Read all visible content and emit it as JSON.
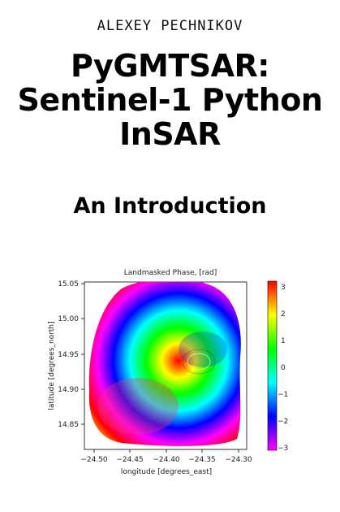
{
  "author": "ALEXEY PECHNIKOV",
  "title_lines": [
    "PyGMTSAR:",
    "Sentinel-1 Python",
    "InSAR"
  ],
  "subtitle": "An Introduction",
  "figure": {
    "title": "Landmasked Phase, [rad]",
    "xlabel": "longitude [degrees_east]",
    "ylabel": "latitude [degrees_north]",
    "xticks": [
      "−24.50",
      "−24.45",
      "−24.40",
      "−24.35",
      "−24.30"
    ],
    "yticks": [
      "15.05",
      "15.00",
      "14.95",
      "14.90",
      "14.85"
    ],
    "colorbar_ticks": [
      "3",
      "2",
      "1",
      "0",
      "−1",
      "−2",
      "−3"
    ],
    "colormap": [
      "#ff00ff",
      "#0000ff",
      "#00ffff",
      "#00ff00",
      "#ffff00",
      "#ff0000"
    ]
  }
}
